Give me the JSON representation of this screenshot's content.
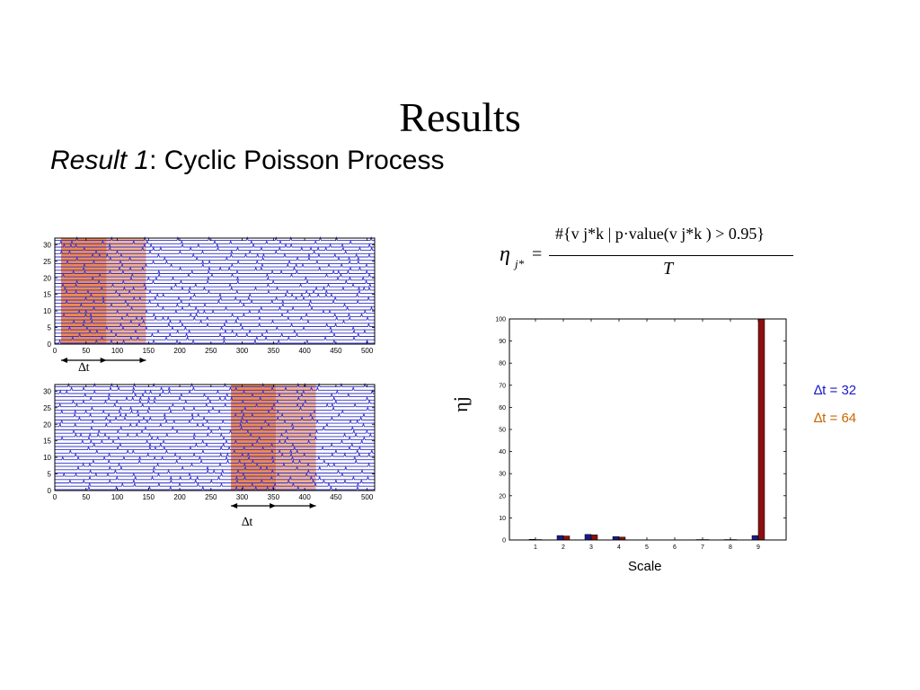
{
  "slide": {
    "title": "Results",
    "subtitle_italic": "Result 1",
    "subtitle_rest": ": Cyclic Poisson Process"
  },
  "formula": {
    "lhs_symbol": "η",
    "lhs_subscript": "j*",
    "equals": "=",
    "numerator_text": "#{v j*k | p·value(v j*k ) > 0.95}",
    "denominator": "T"
  },
  "legend": {
    "items": [
      {
        "label": "∆t = 32",
        "color": "#1a1acc"
      },
      {
        "label": "∆t = 64",
        "color": "#cc6600"
      }
    ]
  },
  "raster_labels": {
    "top_arrow_label": "∆t",
    "bottom_arrow_label": "∆t"
  },
  "chart_data": [
    {
      "type": "raster",
      "xlim": [
        0,
        512
      ],
      "ylim": [
        0,
        32
      ],
      "xticks": [
        0,
        50,
        100,
        150,
        200,
        250,
        300,
        350,
        400,
        450,
        500
      ],
      "yticks": [
        0,
        5,
        10,
        15,
        20,
        25,
        30
      ],
      "n_trains": 32,
      "line_color": "#3333cc",
      "highlight_regions": [
        {
          "x0": 10,
          "x1": 83,
          "color": "#f08a50"
        },
        {
          "x0": 83,
          "x1": 146,
          "color": "#f5b38f"
        }
      ],
      "arrow_span": [
        10,
        146
      ]
    },
    {
      "type": "raster",
      "xlim": [
        0,
        512
      ],
      "ylim": [
        0,
        32
      ],
      "xticks": [
        0,
        50,
        100,
        150,
        200,
        250,
        300,
        350,
        400,
        450,
        500
      ],
      "yticks": [
        0,
        5,
        10,
        15,
        20,
        25,
        30
      ],
      "n_trains": 32,
      "line_color": "#3333cc",
      "highlight_regions": [
        {
          "x0": 282,
          "x1": 354,
          "color": "#f08a50"
        },
        {
          "x0": 354,
          "x1": 418,
          "color": "#f5b38f"
        }
      ],
      "arrow_span": [
        282,
        418
      ]
    },
    {
      "type": "bar",
      "categories": [
        "1",
        "2",
        "3",
        "4",
        "5",
        "6",
        "7",
        "8",
        "9"
      ],
      "series": [
        {
          "name": "∆t = 32",
          "color": "#1a1a8c",
          "values": [
            0.3,
            2,
            2.5,
            1.5,
            0,
            0,
            0.2,
            0.2,
            2
          ]
        },
        {
          "name": "∆t = 64",
          "color": "#8c1010",
          "values": [
            0.2,
            1.8,
            2.3,
            1.3,
            0,
            0,
            0.2,
            0.2,
            100
          ]
        }
      ],
      "ylim": [
        0,
        100
      ],
      "yticks": [
        0,
        10,
        20,
        30,
        40,
        50,
        60,
        70,
        80,
        90,
        100
      ],
      "xlabel": "Scale",
      "ylabel": "ηj"
    }
  ]
}
